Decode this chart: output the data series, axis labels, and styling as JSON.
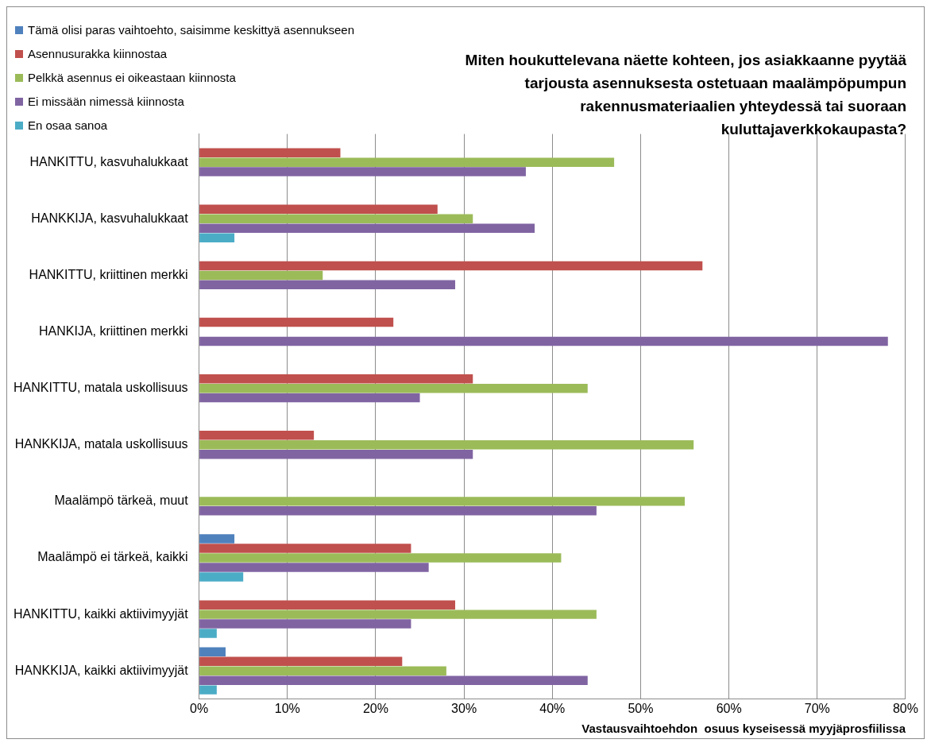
{
  "chart_data": {
    "type": "bar",
    "orientation": "horizontal",
    "title": "Miten houkuttelevana näette kohteen, jos asiakkaanne pyytää tarjousta asennuksesta ostetuaan maalämpöpumpun rakennusmateriaalien yhteydessä  tai suoraan kuluttajaverkkokaupasta?",
    "xlabel": "Vastausvaihtoehdon  osuus kyseisessä myyjäprosfiilissa",
    "categories": [
      "HANKITTU, kasvuhalukkaat",
      "HANKKIJA, kasvuhalukkaat",
      "HANKITTU, kriittinen merkki",
      "HANKIJA, kriittinen merkki",
      "HANKITTU, matala uskollisuus",
      "HANKKIJA, matala uskollisuus",
      "Maalämpö tärkeä, muut",
      "Maalämpö ei tärkeä, kaikki",
      "HANKITTU, kaikki aktiivimyyjät",
      "HANKKIJA, kaikki aktiivimyyjät"
    ],
    "series": [
      {
        "name": "Tämä olisi paras vaihtoehto, saisimme keskittyä asennukseen",
        "color": "#4f81bd",
        "values": [
          null,
          null,
          null,
          null,
          null,
          null,
          null,
          4,
          null,
          3
        ]
      },
      {
        "name": "Asennusurakka kiinnostaa",
        "color": "#c0504d",
        "values": [
          16,
          27,
          57,
          22,
          31,
          13,
          null,
          24,
          29,
          23
        ]
      },
      {
        "name": "Pelkkä asennus ei oikeastaan kiinnosta",
        "color": "#9bbb59",
        "values": [
          47,
          31,
          14,
          null,
          44,
          56,
          55,
          41,
          45,
          28
        ]
      },
      {
        "name": "Ei missään nimessä kiinnosta",
        "color": "#8064a2",
        "values": [
          37,
          38,
          29,
          78,
          25,
          31,
          45,
          26,
          24,
          44
        ]
      },
      {
        "name": "En osaa sanoa",
        "color": "#4bacc6",
        "values": [
          null,
          4,
          null,
          null,
          null,
          null,
          null,
          5,
          2,
          2
        ]
      }
    ],
    "xlim": [
      0,
      80
    ],
    "xticks": [
      {
        "value": 0,
        "label": "0%"
      },
      {
        "value": 10,
        "label": "10%"
      },
      {
        "value": 20,
        "label": "20%"
      },
      {
        "value": 30,
        "label": "30%"
      },
      {
        "value": 40,
        "label": "40%"
      },
      {
        "value": 50,
        "label": "50%"
      },
      {
        "value": 60,
        "label": "60%"
      },
      {
        "value": 70,
        "label": "70%"
      },
      {
        "value": 80,
        "label": "80%"
      }
    ],
    "grid": "x",
    "legend": "top left"
  }
}
